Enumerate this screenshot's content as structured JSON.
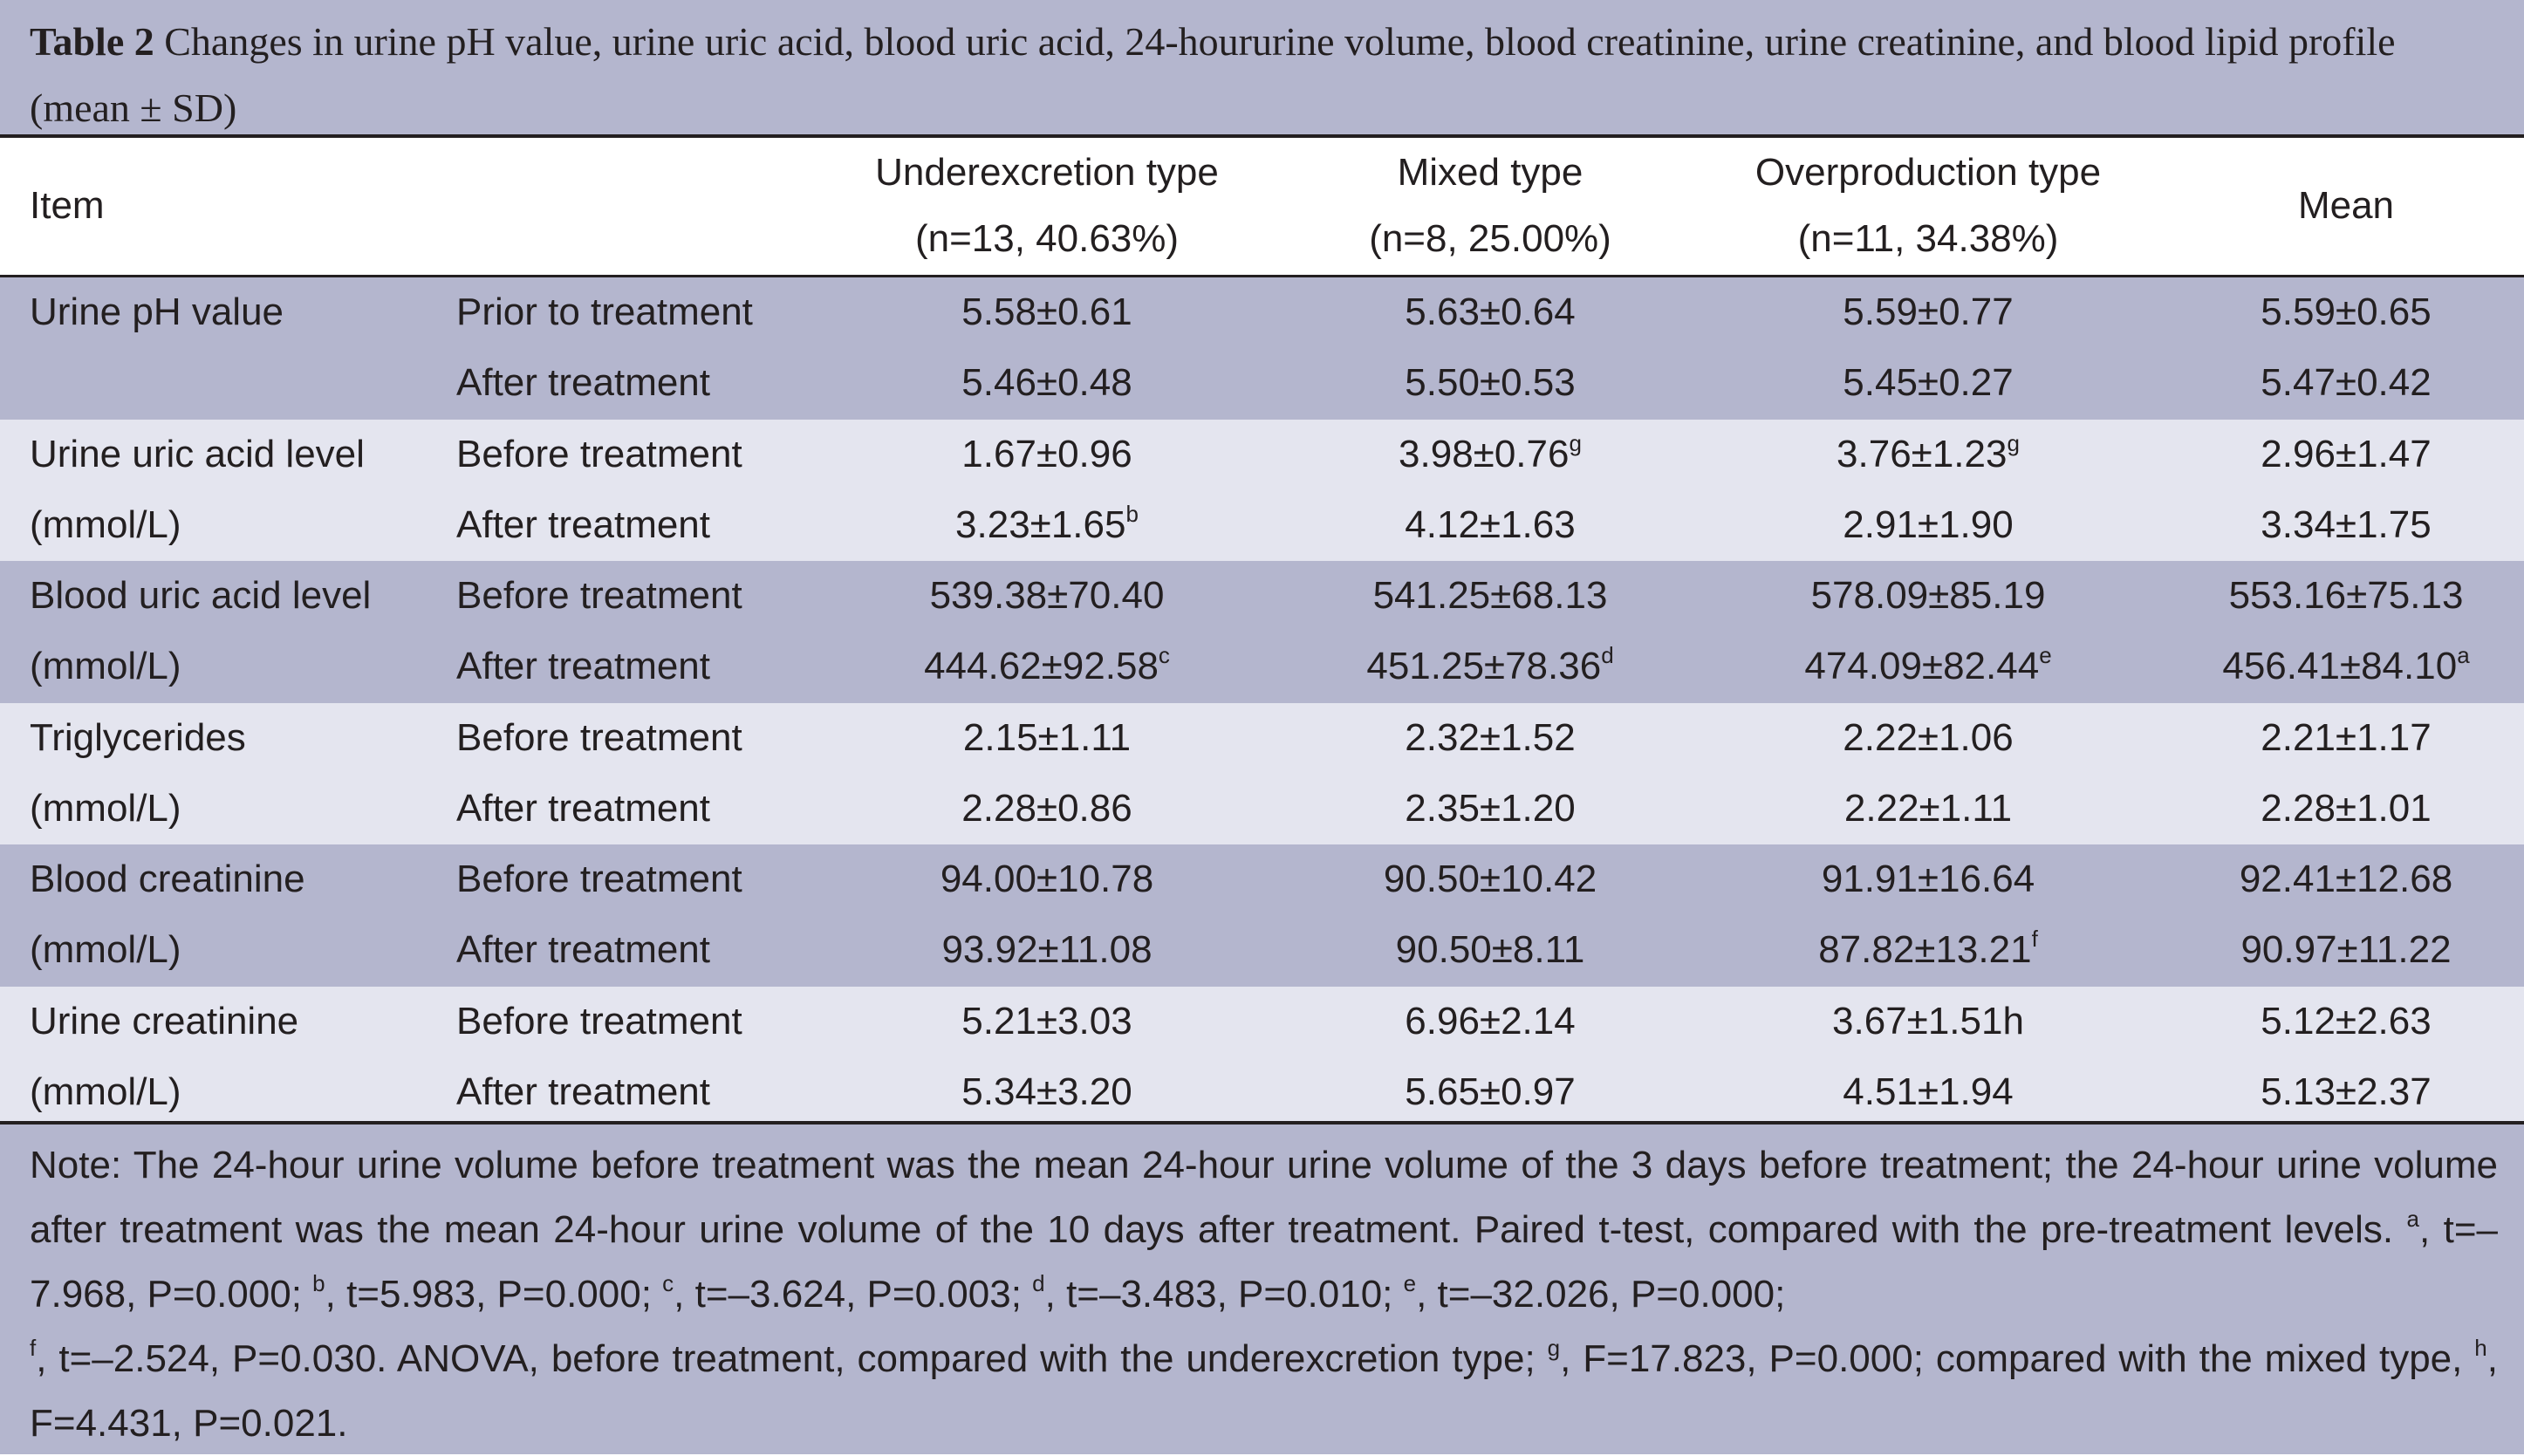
{
  "table": {
    "caption_label": "Table 2",
    "caption_text": " Changes in urine pH value, urine uric acid, blood uric acid, 24-hoururine volume, blood creatinine, urine creatinine, and blood lipid profile (mean ± SD)",
    "header": {
      "item": "Item",
      "col1_line1": "Underexcretion type",
      "col1_line2": "(n=13, 40.63%)",
      "col2_line1": "Mixed type",
      "col2_line2": "(n=8, 25.00%)",
      "col3_line1": "Overproduction type",
      "col3_line2": "(n=11, 34.38%)",
      "col4": "Mean"
    },
    "rows": [
      {
        "item_line1": "Urine pH value",
        "item_line2": "",
        "t1": "Prior to treatment",
        "t2": "After treatment",
        "r1": [
          {
            "v": "5.58±0.61",
            "s": ""
          },
          {
            "v": "5.63±0.64",
            "s": ""
          },
          {
            "v": "5.59±0.77",
            "s": ""
          },
          {
            "v": "5.59±0.65",
            "s": ""
          }
        ],
        "r2": [
          {
            "v": "5.46±0.48",
            "s": ""
          },
          {
            "v": "5.50±0.53",
            "s": ""
          },
          {
            "v": "5.45±0.27",
            "s": ""
          },
          {
            "v": "5.47±0.42",
            "s": ""
          }
        ]
      },
      {
        "item_line1": "Urine uric acid level",
        "item_line2": "(mmol/L)",
        "t1": "Before treatment",
        "t2": "After treatment",
        "r1": [
          {
            "v": "1.67±0.96",
            "s": ""
          },
          {
            "v": "3.98±0.76",
            "s": "g"
          },
          {
            "v": "3.76±1.23",
            "s": "g"
          },
          {
            "v": "2.96±1.47",
            "s": ""
          }
        ],
        "r2": [
          {
            "v": "3.23±1.65",
            "s": "b"
          },
          {
            "v": "4.12±1.63",
            "s": ""
          },
          {
            "v": "2.91±1.90",
            "s": ""
          },
          {
            "v": "3.34±1.75",
            "s": ""
          }
        ]
      },
      {
        "item_line1": "Blood uric acid level",
        "item_line2": "(mmol/L)",
        "t1": "Before treatment",
        "t2": "After treatment",
        "r1": [
          {
            "v": "539.38±70.40",
            "s": ""
          },
          {
            "v": "541.25±68.13",
            "s": ""
          },
          {
            "v": "578.09±85.19",
            "s": ""
          },
          {
            "v": "553.16±75.13",
            "s": ""
          }
        ],
        "r2": [
          {
            "v": "444.62±92.58",
            "s": "c"
          },
          {
            "v": "451.25±78.36",
            "s": "d"
          },
          {
            "v": "474.09±82.44",
            "s": "e"
          },
          {
            "v": "456.41±84.10",
            "s": "a"
          }
        ]
      },
      {
        "item_line1": "Triglycerides",
        "item_line2": "(mmol/L)",
        "t1": "Before treatment",
        "t2": "After treatment",
        "r1": [
          {
            "v": "2.15±1.11",
            "s": ""
          },
          {
            "v": "2.32±1.52",
            "s": ""
          },
          {
            "v": "2.22±1.06",
            "s": ""
          },
          {
            "v": "2.21±1.17",
            "s": ""
          }
        ],
        "r2": [
          {
            "v": "2.28±0.86",
            "s": ""
          },
          {
            "v": "2.35±1.20",
            "s": ""
          },
          {
            "v": "2.22±1.11",
            "s": ""
          },
          {
            "v": "2.28±1.01",
            "s": ""
          }
        ]
      },
      {
        "item_line1": "Blood creatinine",
        "item_line2": "(mmol/L)",
        "t1": "Before treatment",
        "t2": "After treatment",
        "r1": [
          {
            "v": "94.00±10.78",
            "s": ""
          },
          {
            "v": "90.50±10.42",
            "s": ""
          },
          {
            "v": "91.91±16.64",
            "s": ""
          },
          {
            "v": "92.41±12.68",
            "s": ""
          }
        ],
        "r2": [
          {
            "v": "93.92±11.08",
            "s": ""
          },
          {
            "v": "90.50±8.11",
            "s": ""
          },
          {
            "v": "87.82±13.21",
            "s": "f"
          },
          {
            "v": "90.97±11.22",
            "s": ""
          }
        ]
      },
      {
        "item_line1": "Urine creatinine",
        "item_line2": "(mmol/L)",
        "t1": "Before treatment",
        "t2": "After treatment",
        "r1": [
          {
            "v": "5.21±3.03",
            "s": ""
          },
          {
            "v": "6.96±2.14",
            "s": ""
          },
          {
            "v": "3.67±1.51h",
            "s": ""
          },
          {
            "v": "5.12±2.63",
            "s": ""
          }
        ],
        "r2": [
          {
            "v": "5.34±3.20",
            "s": ""
          },
          {
            "v": "5.65±0.97",
            "s": ""
          },
          {
            "v": "4.51±1.94",
            "s": ""
          },
          {
            "v": "5.13±2.37",
            "s": ""
          }
        ]
      }
    ],
    "note": {
      "p1": "Note: The 24-hour urine volume before treatment was the mean 24-hour urine volume of the 3 days before treatment; the 24-hour urine volume after treatment was the mean 24-hour urine volume of the 10 days after treatment. Paired t-test, compared with the pre-treatment levels. ",
      "sa": "a",
      "ta": ", t=–7.968, P=0.000; ",
      "sb": "b",
      "tb": ", t=5.983, P=0.000; ",
      "sc": "c",
      "tc": ", t=–3.624, P=0.003; ",
      "sd": "d",
      "td": ", t=–3.483, P=0.010; ",
      "se": "e",
      "te": ", t=–32.026, P=0.000; ",
      "sf": "f",
      "tf": ", t=–2.524, P=0.030. ANOVA, before treatment, compared with the underexcretion type; ",
      "sg": "g",
      "tg": ", F=17.823, P=0.000; compared with the mixed type, ",
      "sh": "h",
      "th": ", F=4.431, P=0.021."
    }
  }
}
